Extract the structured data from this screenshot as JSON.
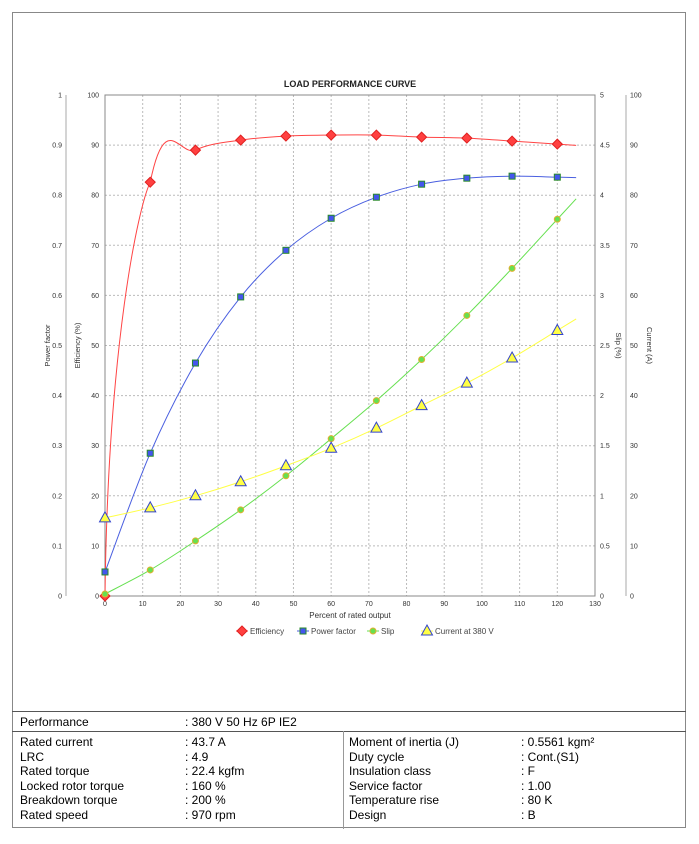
{
  "chart_data": {
    "type": "line",
    "title": "LOAD PERFORMANCE CURVE",
    "xlabel": "Percent of rated output",
    "xlim": [
      0,
      130
    ],
    "xticks": [
      0,
      10,
      20,
      30,
      40,
      50,
      60,
      70,
      80,
      90,
      100,
      110,
      120,
      130
    ],
    "grid": true,
    "legend_placement": "bottom",
    "axes": {
      "power_factor": {
        "label": "Power factor",
        "lim": [
          0,
          1
        ],
        "ticks": [
          "0",
          "0.1",
          "0.2",
          "0.3",
          "0.4",
          "0.5",
          "0.6",
          "0.7",
          "0.8",
          "0.9",
          "1"
        ],
        "side": "left-outer"
      },
      "efficiency": {
        "label": "Efficiency (%)",
        "lim": [
          0,
          100
        ],
        "ticks": [
          "0",
          "10",
          "20",
          "30",
          "40",
          "50",
          "60",
          "70",
          "80",
          "90",
          "100"
        ],
        "side": "left"
      },
      "slip": {
        "label": "Slip (%)",
        "lim": [
          0,
          5
        ],
        "ticks": [
          "0",
          "0.5",
          "1",
          "1.5",
          "2",
          "2.5",
          "3",
          "3.5",
          "4",
          "4.5",
          "5"
        ],
        "side": "right"
      },
      "current": {
        "label": "Current (A)",
        "lim": [
          0,
          100
        ],
        "ticks": [
          "0",
          "10",
          "20",
          "30",
          "40",
          "50",
          "60",
          "70",
          "80",
          "90",
          "100"
        ],
        "side": "right-outer"
      }
    },
    "x": [
      0,
      12,
      24,
      36,
      48,
      60,
      72,
      84,
      96,
      108,
      120
    ],
    "series": [
      {
        "name": "Efficiency",
        "axis": "efficiency",
        "color": "#ff4444",
        "marker": "diamond",
        "values": [
          0,
          82.6,
          89.0,
          91.0,
          91.8,
          92.0,
          92.0,
          91.6,
          91.4,
          90.8,
          90.2
        ]
      },
      {
        "name": "Power factor",
        "axis": "power_factor",
        "color": "#4a5fe0",
        "marker": "square",
        "values": [
          0.048,
          0.285,
          0.465,
          0.597,
          0.69,
          0.754,
          0.796,
          0.822,
          0.834,
          0.838,
          0.836
        ]
      },
      {
        "name": "Slip",
        "axis": "slip",
        "color": "#66e050",
        "marker": "circle",
        "values": [
          0.02,
          0.26,
          0.55,
          0.86,
          1.2,
          1.57,
          1.95,
          2.36,
          2.8,
          3.27,
          3.76
        ]
      },
      {
        "name": "Current at 380 V",
        "axis": "current",
        "color": "#ffff44",
        "marker": "triangle",
        "values": [
          15.6,
          17.6,
          20.0,
          22.8,
          26.0,
          29.5,
          33.5,
          38.0,
          42.5,
          47.5,
          53.0
        ]
      }
    ]
  },
  "table": {
    "performance_label": "Performance",
    "performance_value": ": 380 V 50 Hz 6P IE2",
    "left": [
      {
        "label": "Rated current",
        "value": ": 43.7 A"
      },
      {
        "label": "LRC",
        "value": ": 4.9"
      },
      {
        "label": "Rated torque",
        "value": ": 22.4 kgfm"
      },
      {
        "label": "Locked rotor torque",
        "value": ": 160 %"
      },
      {
        "label": "Breakdown torque",
        "value": ": 200 %"
      },
      {
        "label": "Rated speed",
        "value": ": 970 rpm"
      }
    ],
    "right": [
      {
        "label": "Moment of inertia (J)",
        "value": ": 0.5561 kgm²"
      },
      {
        "label": "Duty cycle",
        "value": ": Cont.(S1)"
      },
      {
        "label": "Insulation class",
        "value": ": F"
      },
      {
        "label": "Service factor",
        "value": ": 1.00"
      },
      {
        "label": "Temperature rise",
        "value": ": 80 K"
      },
      {
        "label": "Design",
        "value": ": B"
      }
    ]
  }
}
